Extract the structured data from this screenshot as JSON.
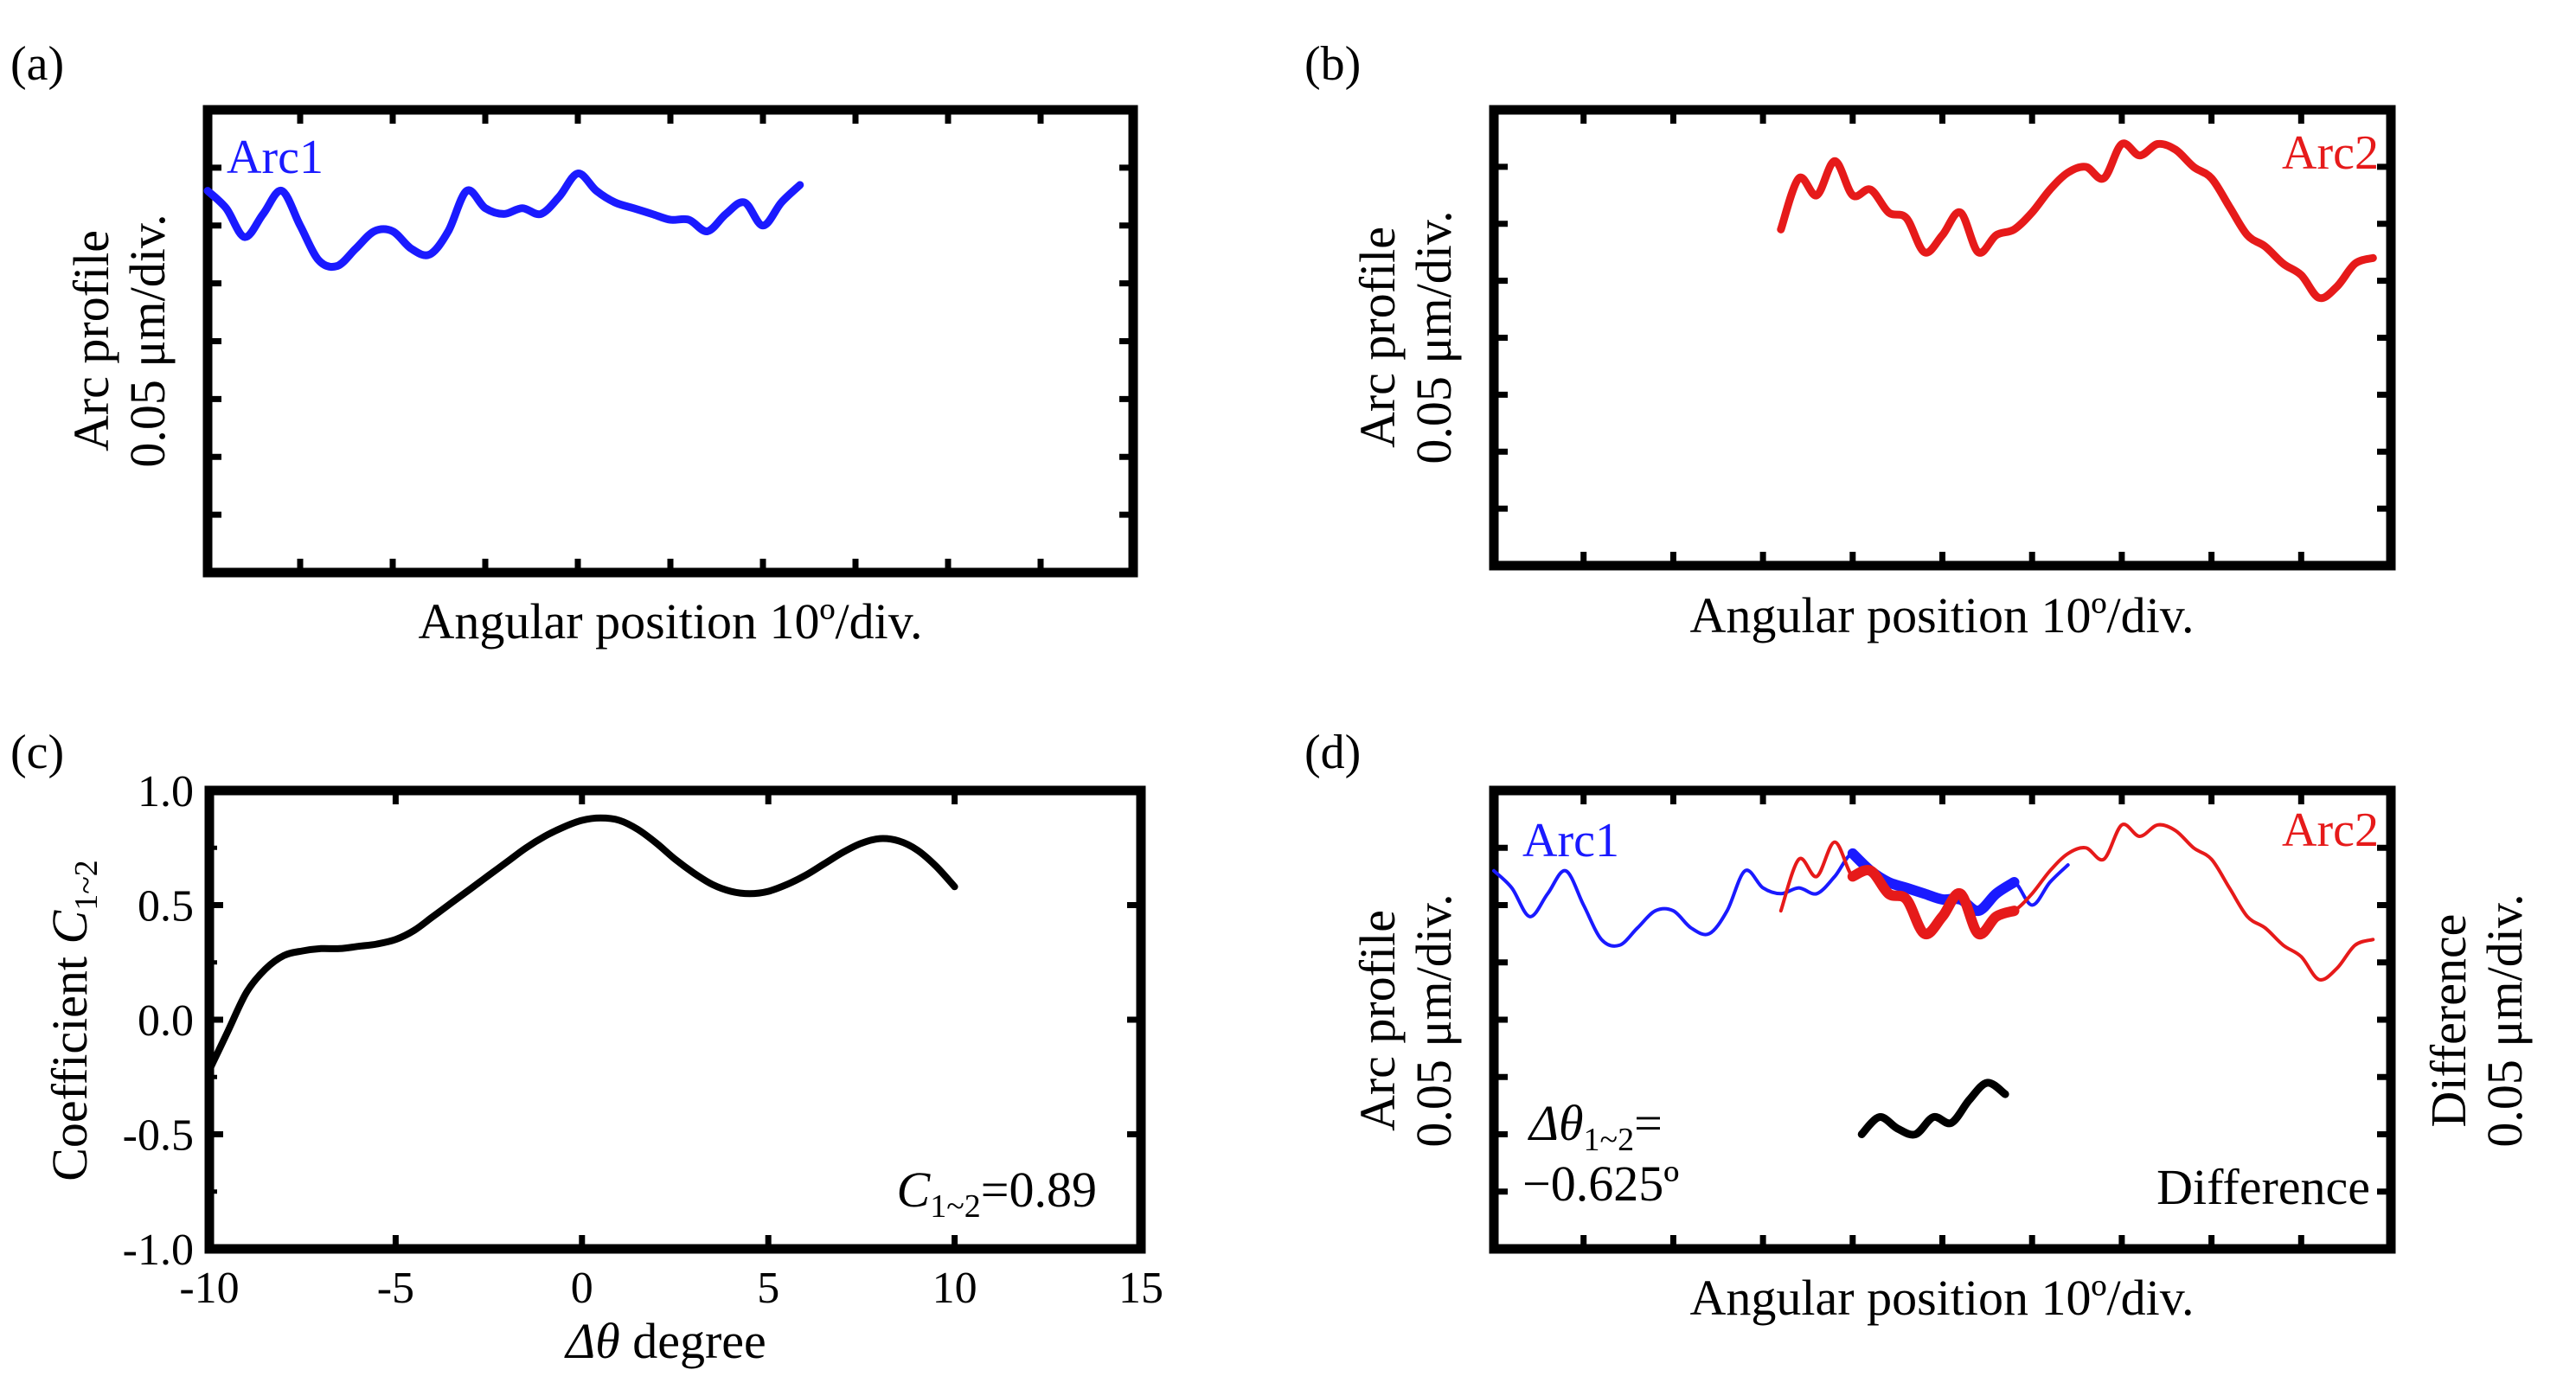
{
  "panels": {
    "a": {
      "label": "(a)",
      "ylabel_line1": "Arc profile",
      "ylabel_line2": "0.05 μm/div.",
      "xlabel": "Angular position 10º/div.",
      "series_label": "Arc1"
    },
    "b": {
      "label": "(b)",
      "ylabel_line1": "Arc profile",
      "ylabel_line2": "0.05 μm/div.",
      "xlabel": "Angular position 10º/div.",
      "series_label": "Arc2"
    },
    "c": {
      "label": "(c)",
      "ylabel_prefix": "Coefficient ",
      "ylabel_var": "C",
      "ylabel_sub": "1~2",
      "xlabel_var": "Δθ",
      "xlabel_rest": " degree",
      "annotation_var": "C",
      "annotation_sub": "1~2",
      "annotation_value": "=0.89"
    },
    "d": {
      "label": "(d)",
      "ylabel_line1": "Arc profile",
      "ylabel_line2": "0.05 μm/div.",
      "y2label_line1": "Difference",
      "y2label_line2": "0.05 μm/div.",
      "xlabel": "Angular position 10º/div.",
      "series1_label": "Arc1",
      "series2_label": "Arc2",
      "shift_var": "Δθ",
      "shift_sub": "1~2",
      "shift_eq": "=",
      "shift_value": "−0.625º",
      "difference_label": "Difference"
    }
  },
  "colors": {
    "arc1": "#1a1aff",
    "arc2": "#e61a1a",
    "difference": "#000000",
    "axis": "#000000"
  },
  "chart_data": [
    {
      "panel": "a",
      "type": "line",
      "title": "",
      "xlabel": "Angular position 10º/div.",
      "ylabel": "Arc profile 0.05 μm/div.",
      "xlim": [
        0,
        100
      ],
      "ylim": [
        0,
        8
      ],
      "x_ticks_per_div": 10,
      "series": [
        {
          "name": "Arc1",
          "color": "#1a1aff",
          "x": [
            0,
            2,
            4,
            6,
            8,
            10,
            12,
            14,
            16,
            18,
            20,
            22,
            24,
            26,
            28,
            30,
            32,
            34,
            36,
            38,
            40,
            42,
            44,
            46,
            48,
            50,
            52,
            54,
            56,
            58,
            60,
            62,
            64
          ],
          "y": [
            6.6,
            6.3,
            5.8,
            6.2,
            6.6,
            6.0,
            5.4,
            5.3,
            5.6,
            5.9,
            5.9,
            5.6,
            5.5,
            5.9,
            6.6,
            6.3,
            6.2,
            6.3,
            6.2,
            6.5,
            6.9,
            6.6,
            6.4,
            6.3,
            6.2,
            6.1,
            6.1,
            5.9,
            6.2,
            6.4,
            6.0,
            6.4,
            6.7
          ]
        }
      ]
    },
    {
      "panel": "b",
      "type": "line",
      "title": "",
      "xlabel": "Angular position 10º/div.",
      "ylabel": "Arc profile 0.05 μm/div.",
      "xlim": [
        0,
        100
      ],
      "ylim": [
        0,
        8
      ],
      "x_ticks_per_div": 10,
      "series": [
        {
          "name": "Arc2",
          "color": "#e61a1a",
          "x": [
            32,
            34,
            36,
            38,
            40,
            42,
            44,
            46,
            48,
            50,
            52,
            54,
            56,
            58,
            60,
            62,
            64,
            66,
            68,
            70,
            72,
            74,
            76,
            78,
            80,
            82,
            84,
            86,
            88,
            90,
            92,
            94,
            96,
            98
          ],
          "y": [
            5.9,
            6.8,
            6.5,
            7.1,
            6.5,
            6.6,
            6.2,
            6.1,
            5.5,
            5.8,
            6.2,
            5.5,
            5.8,
            5.9,
            6.2,
            6.6,
            6.9,
            7.0,
            6.8,
            7.4,
            7.2,
            7.4,
            7.3,
            7.0,
            6.8,
            6.3,
            5.8,
            5.6,
            5.3,
            5.1,
            4.7,
            4.9,
            5.3,
            5.4
          ]
        }
      ]
    },
    {
      "panel": "c",
      "type": "line",
      "title": "",
      "xlabel": "Δθ degree",
      "ylabel": "Coefficient C1~2",
      "xlim": [
        -10,
        15
      ],
      "ylim": [
        -1.0,
        1.0
      ],
      "x_ticks": [
        -10,
        -5,
        0,
        5,
        10,
        15
      ],
      "y_ticks": [
        -1.0,
        -0.5,
        0.0,
        0.5,
        1.0
      ],
      "y_tick_labels": [
        "-1.0",
        "-0.5",
        "0.0",
        "0.5",
        "1.0"
      ],
      "series": [
        {
          "name": "C1~2",
          "color": "#000000",
          "x": [
            -10,
            -9.5,
            -9,
            -8.5,
            -8,
            -7.5,
            -7,
            -6.5,
            -6,
            -5.5,
            -5,
            -4.5,
            -4,
            -3.5,
            -3,
            -2.5,
            -2,
            -1.5,
            -1,
            -0.5,
            0,
            0.5,
            1,
            1.5,
            2,
            2.5,
            3,
            3.5,
            4,
            4.5,
            5,
            5.5,
            6,
            6.5,
            7,
            7.5,
            8,
            8.5,
            9,
            9.5,
            10
          ],
          "y": [
            -0.22,
            -0.05,
            0.12,
            0.22,
            0.28,
            0.3,
            0.31,
            0.31,
            0.32,
            0.33,
            0.35,
            0.39,
            0.45,
            0.51,
            0.57,
            0.63,
            0.69,
            0.75,
            0.8,
            0.84,
            0.87,
            0.88,
            0.87,
            0.83,
            0.77,
            0.7,
            0.64,
            0.59,
            0.56,
            0.55,
            0.56,
            0.59,
            0.63,
            0.68,
            0.73,
            0.77,
            0.79,
            0.78,
            0.74,
            0.67,
            0.58
          ]
        }
      ],
      "annotations": [
        {
          "text": "C1~2=0.89",
          "position": "bottom-right"
        }
      ]
    },
    {
      "panel": "d",
      "type": "line",
      "title": "",
      "xlabel": "Angular position 10º/div.",
      "ylabel": "Arc profile 0.05 μm/div.",
      "y2label": "Difference 0.05 μm/div.",
      "xlim": [
        0,
        100
      ],
      "ylim": [
        0,
        8
      ],
      "x_ticks_per_div": 10,
      "series": [
        {
          "name": "Arc1",
          "color": "#1a1aff",
          "x": [
            0,
            2,
            4,
            6,
            8,
            10,
            12,
            14,
            16,
            18,
            20,
            22,
            24,
            26,
            28,
            30,
            32,
            34,
            36,
            38,
            40,
            42,
            44,
            46,
            48,
            50,
            52,
            54,
            56,
            58,
            60,
            62,
            64
          ],
          "y": [
            6.6,
            6.3,
            5.8,
            6.2,
            6.6,
            6.0,
            5.4,
            5.3,
            5.6,
            5.9,
            5.9,
            5.6,
            5.5,
            5.9,
            6.6,
            6.3,
            6.2,
            6.3,
            6.2,
            6.5,
            6.9,
            6.6,
            6.4,
            6.3,
            6.2,
            6.1,
            6.1,
            5.9,
            6.2,
            6.4,
            6.0,
            6.4,
            6.7
          ]
        },
        {
          "name": "Arc2",
          "color": "#e61a1a",
          "x": [
            32,
            34,
            36,
            38,
            40,
            42,
            44,
            46,
            48,
            50,
            52,
            54,
            56,
            58,
            60,
            62,
            64,
            66,
            68,
            70,
            72,
            74,
            76,
            78,
            80,
            82,
            84,
            86,
            88,
            90,
            92,
            94,
            96,
            98
          ],
          "y": [
            5.9,
            6.8,
            6.5,
            7.1,
            6.5,
            6.6,
            6.2,
            6.1,
            5.5,
            5.8,
            6.2,
            5.5,
            5.8,
            5.9,
            6.2,
            6.6,
            6.9,
            7.0,
            6.8,
            7.4,
            7.2,
            7.4,
            7.3,
            7.0,
            6.8,
            6.3,
            5.8,
            5.6,
            5.3,
            5.1,
            4.7,
            4.9,
            5.3,
            5.4
          ]
        },
        {
          "name": "Difference",
          "color": "#000000",
          "x": [
            41,
            43,
            45,
            47,
            49,
            51,
            53,
            55,
            57
          ],
          "y": [
            2.0,
            2.3,
            2.1,
            2.0,
            2.3,
            2.2,
            2.6,
            2.9,
            2.7
          ]
        }
      ],
      "overlap": {
        "x_start": 40,
        "x_end": 58
      }
    }
  ]
}
